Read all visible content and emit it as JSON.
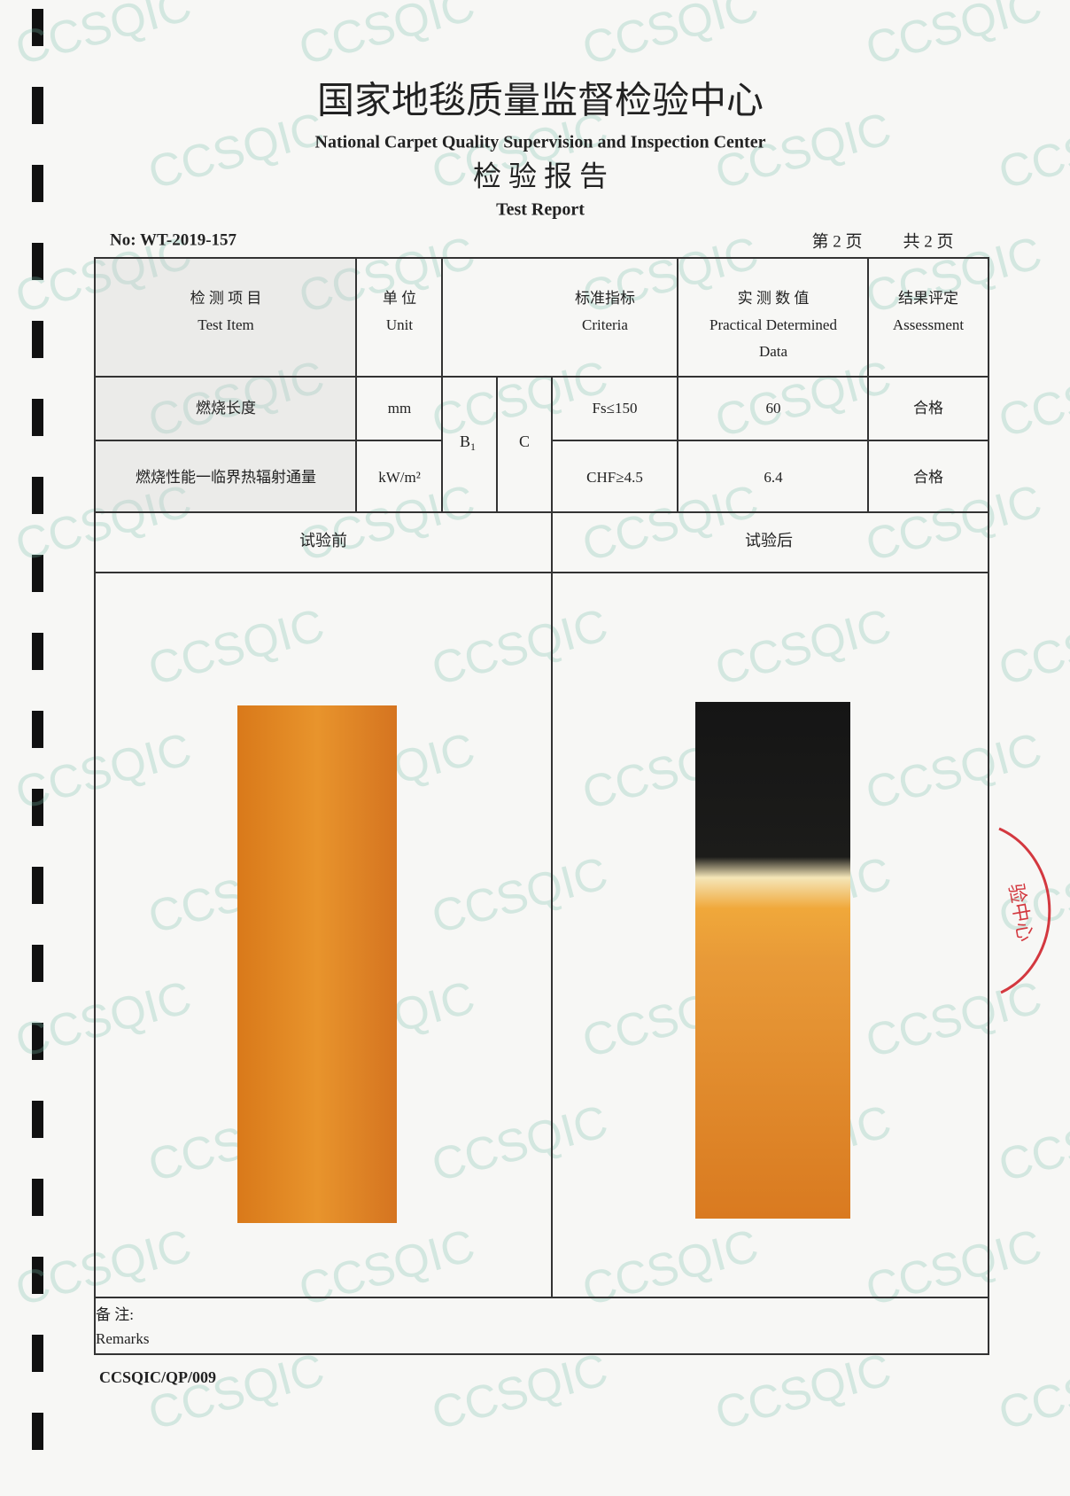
{
  "header": {
    "title_cn": "国家地毯质量监督检验中心",
    "title_en": "National Carpet Quality Supervision and Inspection Center",
    "report_cn": "检 验 报 告",
    "report_en": "Test Report",
    "number": "No: WT-2019-157",
    "page": "第 2 页",
    "total": "共 2 页"
  },
  "table": {
    "columns": [
      [
        "检 测 项 目",
        "Test Item"
      ],
      [
        "单 位",
        "Unit"
      ],
      [
        "标准指标",
        "Criteria"
      ],
      [
        "实 测 数 值",
        "Practical Determined",
        "Data"
      ],
      [
        "结果评定",
        "Assessment"
      ]
    ],
    "class": "B",
    "class_sub": "1",
    "grade": "C",
    "rows": [
      [
        "燃烧长度",
        "mm",
        "Fs≤150",
        "60",
        "合格"
      ],
      [
        "燃烧性能一临界热辐射通量",
        "kW/m²",
        "CHF≥4.5",
        "6.4",
        "合格"
      ]
    ]
  },
  "photos": {
    "before": "试验前",
    "after": "试验后"
  },
  "remarks": {
    "cn": "备 注:",
    "en": "Remarks"
  },
  "footer": {
    "code": "CCSQIC/QP/009"
  },
  "watermark": "CCSQIC",
  "stamp": "验中心"
}
